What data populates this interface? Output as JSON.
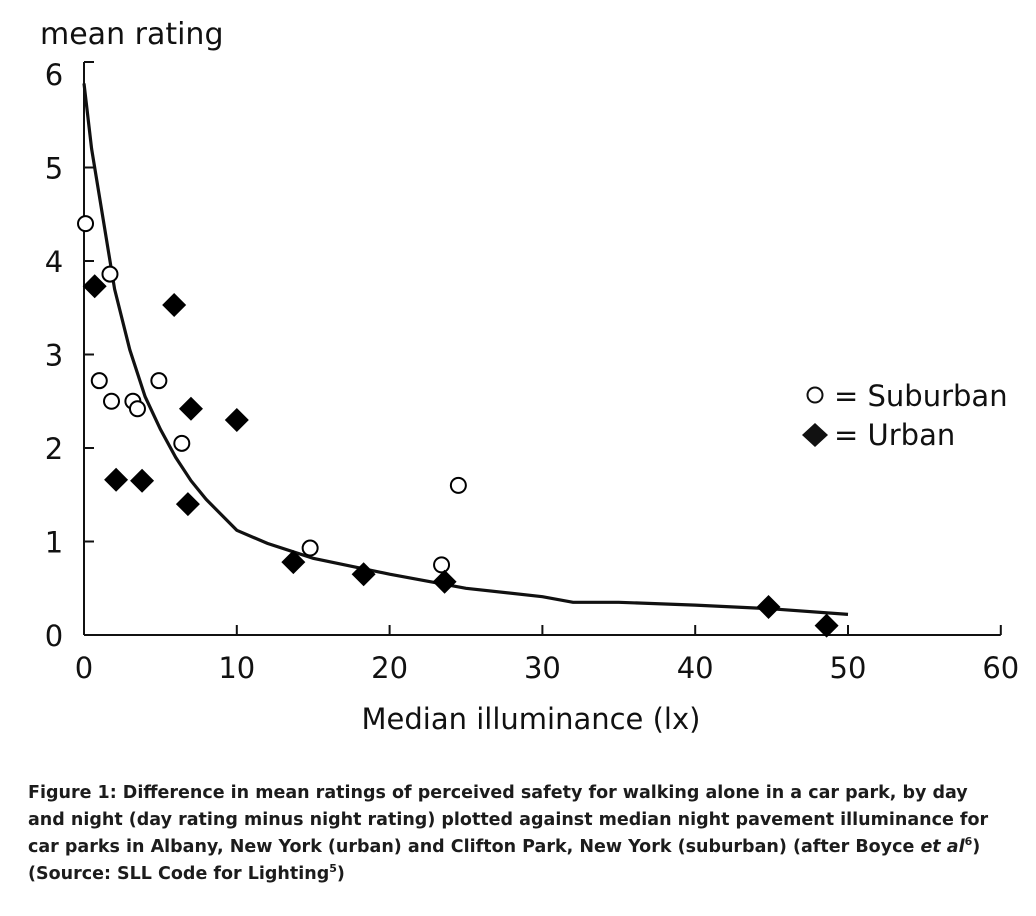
{
  "chart_data": {
    "type": "scatter",
    "ylabel": "mean rating",
    "xlabel": "Median illuminance (lx)",
    "xlim": [
      0,
      60
    ],
    "ylim": [
      0,
      6
    ],
    "x_ticks": [
      "0",
      "10",
      "20",
      "30",
      "40",
      "50",
      "60"
    ],
    "y_ticks": [
      "0",
      "1",
      "2",
      "3",
      "4",
      "5",
      "6"
    ],
    "grid": false,
    "legend_position": "right",
    "series": [
      {
        "name": "Suburban",
        "marker": "open-circle",
        "color": "#000000",
        "points": [
          [
            0.1,
            4.4
          ],
          [
            1.7,
            3.86
          ],
          [
            1.0,
            2.72
          ],
          [
            1.8,
            2.5
          ],
          [
            3.2,
            2.5
          ],
          [
            3.5,
            2.42
          ],
          [
            4.9,
            2.72
          ],
          [
            6.4,
            2.05
          ],
          [
            14.8,
            0.93
          ],
          [
            23.4,
            0.75
          ],
          [
            24.5,
            1.6
          ]
        ]
      },
      {
        "name": "Urban",
        "marker": "filled-diamond",
        "color": "#000000",
        "points": [
          [
            0.7,
            3.73
          ],
          [
            5.9,
            3.53
          ],
          [
            2.1,
            1.66
          ],
          [
            3.8,
            1.65
          ],
          [
            6.8,
            1.4
          ],
          [
            7.0,
            2.42
          ],
          [
            10.0,
            2.3
          ],
          [
            13.7,
            0.78
          ],
          [
            18.3,
            0.65
          ],
          [
            23.6,
            0.57
          ],
          [
            44.8,
            0.3
          ],
          [
            48.6,
            0.1
          ]
        ]
      }
    ],
    "fit_curve": {
      "x": [
        0,
        0.5,
        1,
        2,
        3,
        4,
        5,
        6,
        7,
        8,
        10,
        12,
        15,
        20,
        25,
        30,
        32,
        35,
        40,
        45,
        50
      ],
      "y": [
        5.9,
        5.2,
        4.7,
        3.7,
        3.05,
        2.55,
        2.2,
        1.9,
        1.65,
        1.45,
        1.12,
        0.98,
        0.82,
        0.65,
        0.5,
        0.41,
        0.35,
        0.35,
        0.32,
        0.28,
        0.22
      ]
    },
    "legend": {
      "suburban_label": "= Suburban",
      "urban_label": "= Urban"
    }
  },
  "caption": {
    "lead": "Figure 1:",
    "part1": " Difference in mean ratings of perceived safety for walking alone in a car park, by day and night (day rating minus night rating) plotted against median night pavement illuminance for car parks in Albany, New York (urban) and Clifton Park, New York (suburban) (after Boyce ",
    "etal": "et al",
    "ref1": "6",
    "part2": ") (Source: SLL Code for Lighting",
    "ref2": "5",
    "part3": ")"
  }
}
